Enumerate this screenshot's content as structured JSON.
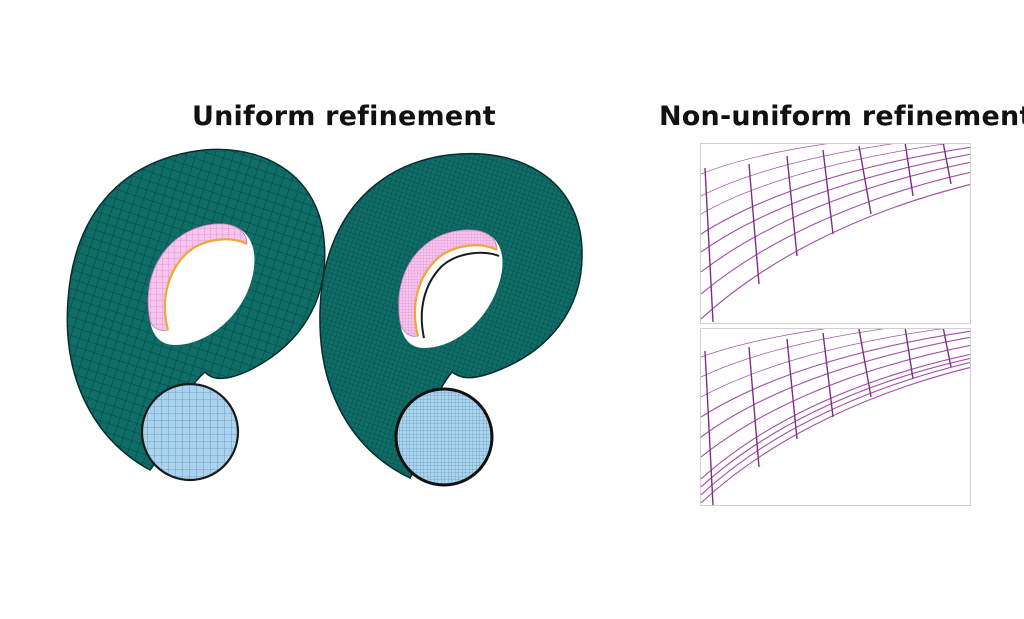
{
  "titles": {
    "left": "Uniform refinement",
    "right": "Non-uniform refinement"
  },
  "colors": {
    "surface": "#0f6d68",
    "surface_dark": "#0a4f4b",
    "grid_line": "#083a37",
    "inner_pink": "#f6c4ec",
    "inner_orange": "#f0a833",
    "end_cap": "#a9d3ee",
    "mesh_purple": "#a24ea7"
  },
  "figures": {
    "coarse_torus": "coarse",
    "fine_torus": "fine",
    "detail_top": "coarse-detail",
    "detail_bottom": "fine-detail"
  }
}
